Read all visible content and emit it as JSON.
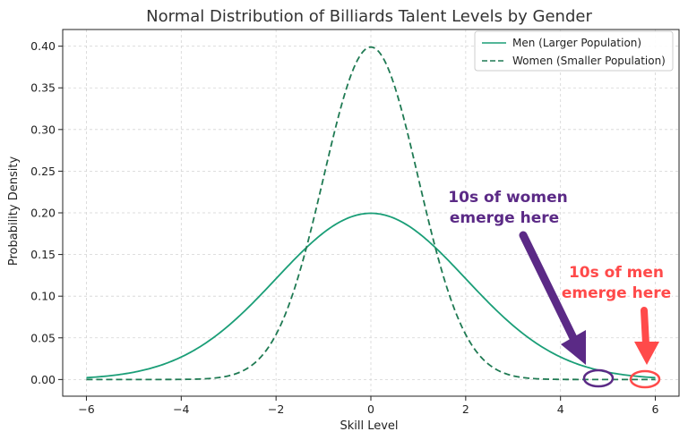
{
  "chart_data": {
    "type": "line",
    "title": "Normal Distribution of Billiards Talent Levels by Gender",
    "xlabel": "Skill Level",
    "ylabel": "Probability Density",
    "xlim": [
      -6.5,
      6.5
    ],
    "ylim": [
      -0.02,
      0.42
    ],
    "xticks": [
      -6,
      -4,
      -2,
      0,
      2,
      4,
      6
    ],
    "xtick_labels": [
      "−6",
      "−4",
      "−2",
      "0",
      "2",
      "4",
      "6"
    ],
    "yticks": [
      0.0,
      0.05,
      0.1,
      0.15,
      0.2,
      0.25,
      0.3,
      0.35,
      0.4
    ],
    "ytick_labels": [
      "0.00",
      "0.05",
      "0.10",
      "0.15",
      "0.20",
      "0.25",
      "0.30",
      "0.35",
      "0.40"
    ],
    "grid": true,
    "legend_position": "top-right",
    "series": [
      {
        "name": "Men (Larger Population)",
        "style": "solid",
        "color": "#1a9e77",
        "distribution": "normal",
        "mean": 0,
        "sd": 2,
        "x_range": [
          -6,
          6
        ]
      },
      {
        "name": "Women (Smaller Population)",
        "style": "dashed",
        "color": "#1f7a53",
        "distribution": "normal",
        "mean": 0,
        "sd": 1,
        "x_range": [
          -6,
          6
        ]
      }
    ],
    "annotations": [
      {
        "lines": [
          "10s of women",
          "emerge here"
        ],
        "color": "#5b2a86",
        "target_x": 4.9,
        "target_y": 0.0
      },
      {
        "lines": [
          "10s of men",
          "emerge here"
        ],
        "color": "#ff4a4a",
        "target_x": 5.8,
        "target_y": 0.0
      }
    ]
  }
}
